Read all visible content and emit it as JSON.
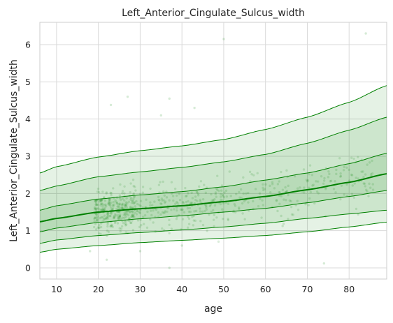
{
  "chart_data": {
    "type": "line",
    "title": "Left_Anterior_Cingulate_Sulcus_width",
    "xlabel": "age",
    "ylabel": "Left_Anterior_Cingulate_Sulcus_width",
    "xlim": [
      6,
      89
    ],
    "ylim": [
      -0.3,
      6.6
    ],
    "xticks": [
      10,
      20,
      30,
      40,
      50,
      60,
      70,
      80
    ],
    "yticks": [
      0,
      1,
      2,
      3,
      4,
      5,
      6
    ],
    "grid": true,
    "color": "#008000",
    "x": [
      6,
      10,
      20,
      30,
      40,
      50,
      60,
      70,
      80,
      89
    ],
    "series": [
      {
        "values": [
          0.42,
          0.5,
          0.6,
          0.68,
          0.74,
          0.8,
          0.87,
          0.97,
          1.1,
          1.23
        ]
      },
      {
        "values": [
          0.66,
          0.75,
          0.87,
          0.95,
          1.02,
          1.1,
          1.2,
          1.33,
          1.45,
          1.55
        ]
      },
      {
        "values": [
          0.97,
          1.07,
          1.22,
          1.32,
          1.4,
          1.5,
          1.6,
          1.75,
          1.92,
          2.08
        ]
      },
      {
        "values": [
          1.24,
          1.33,
          1.5,
          1.59,
          1.67,
          1.78,
          1.92,
          2.1,
          2.3,
          2.53
        ]
      },
      {
        "values": [
          1.55,
          1.67,
          1.85,
          1.96,
          2.05,
          2.18,
          2.36,
          2.55,
          2.8,
          3.08
        ]
      },
      {
        "values": [
          2.08,
          2.2,
          2.45,
          2.58,
          2.7,
          2.85,
          3.05,
          3.35,
          3.7,
          4.05
        ]
      },
      {
        "values": [
          2.55,
          2.72,
          2.98,
          3.15,
          3.28,
          3.45,
          3.72,
          4.05,
          4.45,
          4.9
        ]
      }
    ],
    "scatter": {
      "outliers": [
        [
          84,
          6.3
        ],
        [
          50,
          6.15
        ],
        [
          27,
          4.6
        ],
        [
          37,
          4.55
        ],
        [
          23,
          4.38
        ],
        [
          43,
          4.3
        ],
        [
          35,
          4.1
        ],
        [
          37,
          0.0
        ],
        [
          22,
          0.22
        ],
        [
          74,
          0.12
        ],
        [
          18,
          0.45
        ],
        [
          40,
          0.6
        ],
        [
          30,
          0.45
        ]
      ],
      "point_count": 700
    }
  }
}
